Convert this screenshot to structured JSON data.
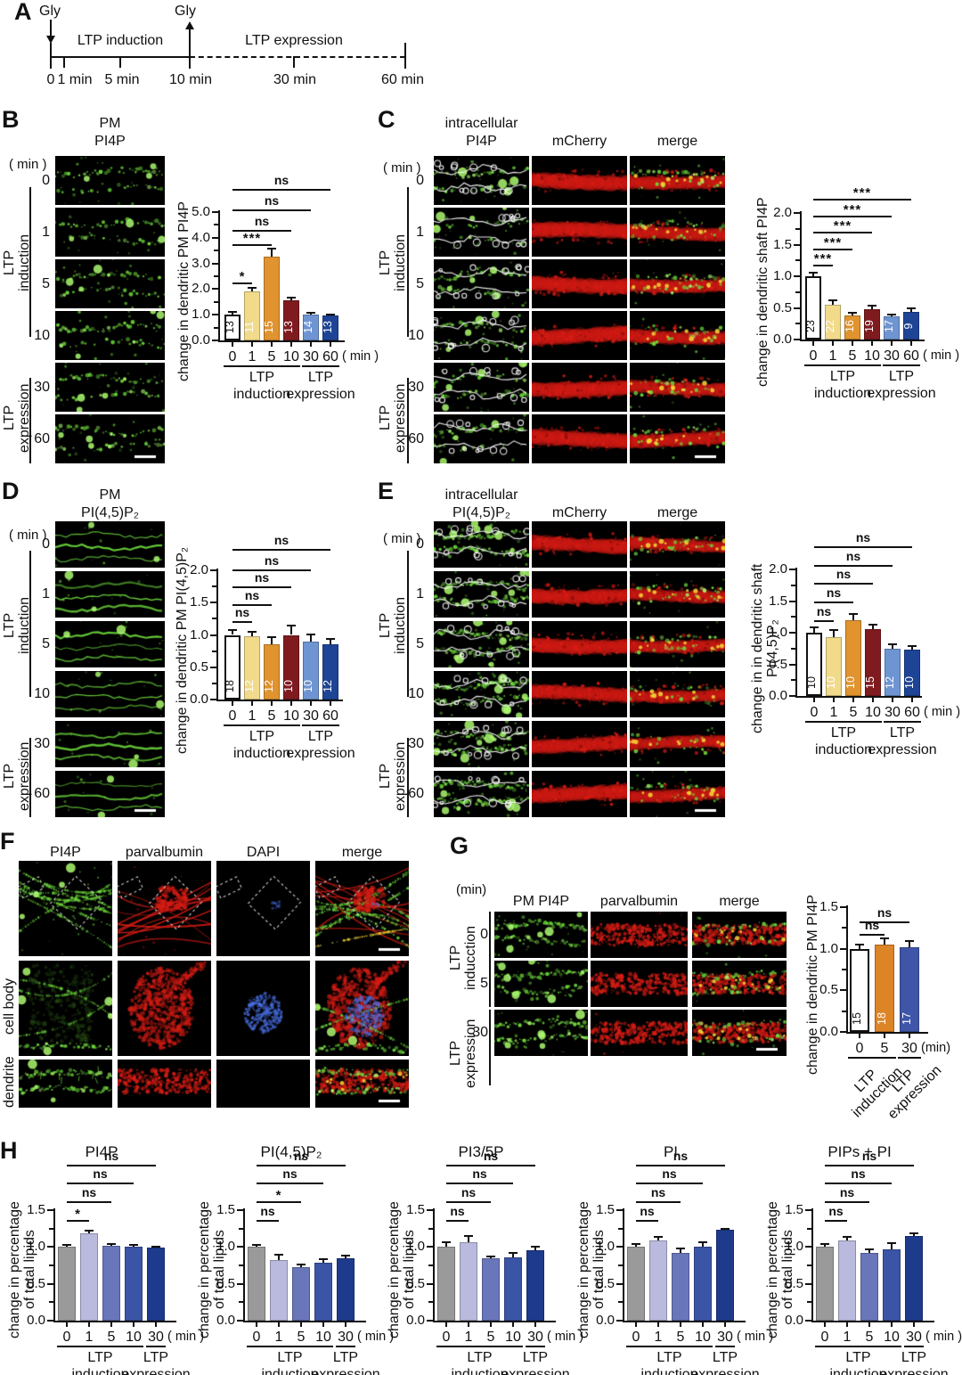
{
  "panels": {
    "A": {
      "label": "A",
      "gly": "Gly",
      "induction_label": "LTP induction",
      "expression_label": "LTP expression",
      "tick_labels": [
        "0",
        "1 min",
        "5 min",
        "10 min",
        "30 min",
        "60 min"
      ]
    },
    "B": {
      "label": "B",
      "header": [
        "PM",
        "PI4P"
      ],
      "min_label": "( min )",
      "times": [
        "0",
        "1",
        "5",
        "10",
        "30",
        "60"
      ],
      "side_groups": [
        [
          "LTP",
          "induction"
        ],
        [
          "LTP",
          "expression"
        ]
      ]
    },
    "C": {
      "label": "C",
      "header_col1": [
        "intracellular",
        "PI4P"
      ],
      "header_col2": "mCherry",
      "header_col3": "merge",
      "min_label": "( min )",
      "times": [
        "0",
        "1",
        "5",
        "10",
        "30",
        "60"
      ],
      "side_groups": [
        [
          "LTP",
          "induction"
        ],
        [
          "LTP",
          "expression"
        ]
      ]
    },
    "D": {
      "label": "D",
      "header": [
        "PM",
        "PI(4,5)P₂"
      ],
      "min_label": "( min )",
      "times": [
        "0",
        "1",
        "5",
        "10",
        "30",
        "60"
      ],
      "side_groups": [
        [
          "LTP",
          "induction"
        ],
        [
          "LTP",
          "expression"
        ]
      ]
    },
    "E": {
      "label": "E",
      "header_col1": [
        "intracellular",
        "PI(4,5)P₂"
      ],
      "header_col2": "mCherry",
      "header_col3": "merge",
      "min_label": "( min )",
      "times": [
        "0",
        "1",
        "5",
        "10",
        "30",
        "60"
      ],
      "side_groups": [
        [
          "LTP",
          "induction"
        ],
        [
          "LTP",
          "expression"
        ]
      ]
    },
    "F": {
      "label": "F",
      "col_headers": [
        "PI4P",
        "parvalbumin",
        "DAPI",
        "merge"
      ],
      "row_labels": [
        "cell body",
        "dendrite"
      ]
    },
    "G": {
      "label": "G",
      "min_label": "(min)",
      "col_headers": [
        "PM PI4P",
        "parvalbumin",
        "merge"
      ],
      "times": [
        "0",
        "5",
        "30"
      ],
      "side_groups": [
        [
          "LTP",
          "inducction"
        ],
        [
          "LTP",
          "expression"
        ]
      ]
    },
    "H": {
      "label": "H"
    }
  },
  "chart_data": [
    {
      "id": "B",
      "type": "bar",
      "title": "",
      "ylabel": "change in dendritic PM PI4P",
      "categories": [
        "0",
        "1",
        "5",
        "10",
        "30",
        "60"
      ],
      "values": [
        1.0,
        1.9,
        3.25,
        1.55,
        1.0,
        0.97
      ],
      "errors": [
        0.1,
        0.15,
        0.33,
        0.13,
        0.06,
        0.05
      ],
      "n": [
        13,
        11,
        15,
        13,
        14,
        13
      ],
      "bar_colors": [
        "#ffffff",
        "#f1da8a",
        "#e0932e",
        "#7f1b1f",
        "#6e95d2",
        "#1e4496"
      ],
      "ylim": [
        0,
        5
      ],
      "yticks": [
        0,
        1,
        2,
        3,
        4,
        5
      ],
      "ytick_labels": [
        "0.0",
        "1.0",
        "2.0",
        "3.0",
        "4.0",
        "5.0"
      ],
      "xunit": "( min )",
      "sig": [
        {
          "to": 1,
          "label": "*",
          "y": 2.26
        },
        {
          "to": 2,
          "label": "***",
          "y": 3.75
        },
        {
          "to": 3,
          "label": "ns",
          "y": 4.3
        },
        {
          "to": 4,
          "label": "ns",
          "y": 5.1
        },
        {
          "to": 5,
          "label": "ns",
          "y": 5.9
        }
      ],
      "groups": [
        {
          "lines": [
            "LTP",
            "induction"
          ],
          "from": 0,
          "to": 3
        },
        {
          "lines": [
            "LTP",
            "expression"
          ],
          "from": 4,
          "to": 5
        }
      ]
    },
    {
      "id": "C",
      "type": "bar",
      "title": "",
      "ylabel": "change in dendritic shaft PI4P",
      "categories": [
        "0",
        "1",
        "5",
        "10",
        "30",
        "60"
      ],
      "values": [
        1.0,
        0.55,
        0.38,
        0.48,
        0.36,
        0.44
      ],
      "errors": [
        0.06,
        0.07,
        0.04,
        0.06,
        0.04,
        0.05
      ],
      "n": [
        23,
        22,
        16,
        19,
        17,
        9
      ],
      "bar_colors": [
        "#ffffff",
        "#f1da8a",
        "#e0932e",
        "#7f1b1f",
        "#6e95d2",
        "#1e4496"
      ],
      "ylim": [
        0,
        2
      ],
      "yticks": [
        0,
        0.5,
        1,
        1.5,
        2
      ],
      "ytick_labels": [
        "0.0",
        "0.5",
        "1.0",
        "1.5",
        "2.0"
      ],
      "xunit": "( min )",
      "sig": [
        {
          "to": 1,
          "label": "***",
          "y": 1.18
        },
        {
          "to": 2,
          "label": "***",
          "y": 1.44
        },
        {
          "to": 3,
          "label": "***",
          "y": 1.7
        },
        {
          "to": 4,
          "label": "***",
          "y": 1.96
        },
        {
          "to": 5,
          "label": "***",
          "y": 2.22
        }
      ],
      "groups": [
        {
          "lines": [
            "LTP",
            "induction"
          ],
          "from": 0,
          "to": 3
        },
        {
          "lines": [
            "LTP",
            "expression"
          ],
          "from": 4,
          "to": 5
        }
      ]
    },
    {
      "id": "D",
      "type": "bar",
      "title": "",
      "ylabel": "change in dendritic PM PI(4,5)P₂",
      "categories": [
        "0",
        "1",
        "5",
        "10",
        "30",
        "60"
      ],
      "values": [
        1.0,
        0.98,
        0.85,
        1.0,
        0.9,
        0.85
      ],
      "errors": [
        0.08,
        0.07,
        0.12,
        0.14,
        0.11,
        0.09
      ],
      "n": [
        18,
        12,
        12,
        10,
        10,
        12
      ],
      "bar_colors": [
        "#ffffff",
        "#f1da8a",
        "#e0932e",
        "#7f1b1f",
        "#6e95d2",
        "#1e4496"
      ],
      "ylim": [
        0,
        2
      ],
      "yticks": [
        0,
        0.5,
        1,
        1.5,
        2
      ],
      "ytick_labels": [
        "0.0",
        "0.5",
        "1.0",
        "1.5",
        "2.0"
      ],
      "xunit": null,
      "sig": [
        {
          "to": 1,
          "label": "ns",
          "y": 1.21
        },
        {
          "to": 2,
          "label": "ns",
          "y": 1.47
        },
        {
          "to": 3,
          "label": "ns",
          "y": 1.75
        },
        {
          "to": 4,
          "label": "ns",
          "y": 2.02
        },
        {
          "to": 5,
          "label": "ns",
          "y": 2.33
        }
      ],
      "groups": [
        {
          "lines": [
            "LTP",
            "induction"
          ],
          "from": 0,
          "to": 3
        },
        {
          "lines": [
            "LTP",
            "expression"
          ],
          "from": 4,
          "to": 5
        }
      ]
    },
    {
      "id": "E",
      "type": "bar",
      "title": "",
      "ylabel": "change in in dendritic shaft PI(4,5)P₂",
      "categories": [
        "0",
        "1",
        "5",
        "10",
        "30",
        "60"
      ],
      "values": [
        1.0,
        0.93,
        1.2,
        1.05,
        0.75,
        0.73
      ],
      "errors": [
        0.09,
        0.11,
        0.1,
        0.07,
        0.07,
        0.06
      ],
      "n": [
        10,
        10,
        10,
        15,
        12,
        10
      ],
      "bar_colors": [
        "#ffffff",
        "#f1da8a",
        "#e0932e",
        "#7f1b1f",
        "#6e95d2",
        "#1e4496"
      ],
      "ylim": [
        0,
        2
      ],
      "yticks": [
        0,
        0.5,
        1,
        1.5,
        2
      ],
      "ytick_labels": [
        "0.0",
        "0.5",
        "1.0",
        "1.5",
        "2.0"
      ],
      "xunit": "( min )",
      "sig": [
        {
          "to": 1,
          "label": "ns",
          "y": 1.2
        },
        {
          "to": 2,
          "label": "ns",
          "y": 1.49
        },
        {
          "to": 3,
          "label": "ns",
          "y": 1.79
        },
        {
          "to": 4,
          "label": "ns",
          "y": 2.07
        },
        {
          "to": 5,
          "label": "ns",
          "y": 2.37
        }
      ],
      "groups": [
        {
          "lines": [
            "LTP",
            "induction"
          ],
          "from": 0,
          "to": 3
        },
        {
          "lines": [
            "LTP",
            "expression"
          ],
          "from": 4,
          "to": 5
        }
      ]
    },
    {
      "id": "G",
      "type": "bar",
      "title": "",
      "ylabel": "change in dendritic PM PI4P",
      "categories": [
        "0",
        "5",
        "30"
      ],
      "values": [
        1.0,
        1.05,
        1.02
      ],
      "errors": [
        0.05,
        0.07,
        0.07
      ],
      "n": [
        15,
        18,
        17
      ],
      "bar_colors": [
        "#ffffff",
        "#dd8427",
        "#3f55a8"
      ],
      "ylim": [
        0,
        1.5
      ],
      "yticks": [
        0,
        0.5,
        1,
        1.5
      ],
      "ytick_labels": [
        "0.0",
        "0.5",
        "1.0",
        "1.5"
      ],
      "xunit": "(min)",
      "sig": [
        {
          "to": 1,
          "label": "ns",
          "y": 1.18
        },
        {
          "to": 2,
          "label": "ns",
          "y": 1.33
        }
      ],
      "groups": [
        {
          "lines": [
            "LTP",
            "inducction"
          ],
          "from": 0,
          "to": 1,
          "rot": true
        },
        {
          "lines": [
            "LTP",
            "expression"
          ],
          "from": 2,
          "to": 2,
          "rot": true
        }
      ]
    },
    {
      "id": "H1",
      "type": "bar",
      "title": "PI4P",
      "ylabel": [
        "change in percentage",
        "of total lipids"
      ],
      "categories": [
        "0",
        "1",
        "5",
        "10",
        "30"
      ],
      "values": [
        1.0,
        1.18,
        1.02,
        1.0,
        0.99
      ],
      "errors": [
        0.03,
        0.04,
        0.02,
        0.03,
        0.01
      ],
      "n": null,
      "bar_colors": [
        "#9a9a9a",
        "#b9badd",
        "#6a76ba",
        "#3b55a6",
        "#1e3a8d"
      ],
      "ylim": [
        0,
        1.5
      ],
      "yticks": [
        0,
        0.5,
        1,
        1.5
      ],
      "ytick_labels": [
        "0.0",
        "0.5",
        "1.0",
        "1.5"
      ],
      "xunit": "( min )",
      "sig": [
        {
          "to": 1,
          "label": "*",
          "y": 1.37
        },
        {
          "to": 2,
          "label": "ns",
          "y": 1.62
        },
        {
          "to": 3,
          "label": "ns",
          "y": 1.87
        },
        {
          "to": 4,
          "label": "ns",
          "y": 2.12
        }
      ],
      "groups": [
        {
          "lines": [
            "LTP",
            "induction"
          ],
          "from": 0,
          "to": 3
        },
        {
          "lines": [
            "LTP",
            "expression"
          ],
          "from": 4,
          "to": 4
        }
      ]
    },
    {
      "id": "H2",
      "type": "bar",
      "title": "PI(4,5)P₂",
      "ylabel": [
        "change in percentage",
        "of total lipids"
      ],
      "categories": [
        "0",
        "1",
        "5",
        "10",
        "30"
      ],
      "values": [
        1.0,
        0.82,
        0.73,
        0.79,
        0.85
      ],
      "errors": [
        0.03,
        0.07,
        0.03,
        0.05,
        0.03
      ],
      "n": null,
      "bar_colors": [
        "#9a9a9a",
        "#b9badd",
        "#6a76ba",
        "#3b55a6",
        "#1e3a8d"
      ],
      "ylim": [
        0,
        1.5
      ],
      "yticks": [
        0,
        0.5,
        1,
        1.5
      ],
      "ytick_labels": [
        "0.0",
        "0.5",
        "1.0",
        "1.5"
      ],
      "xunit": "( min )",
      "sig": [
        {
          "to": 1,
          "label": "ns",
          "y": 1.37
        },
        {
          "to": 2,
          "label": "*",
          "y": 1.62
        },
        {
          "to": 3,
          "label": "ns",
          "y": 1.87
        },
        {
          "to": 4,
          "label": "ns",
          "y": 2.12
        }
      ],
      "groups": [
        {
          "lines": [
            "LTP",
            "induction"
          ],
          "from": 0,
          "to": 3
        },
        {
          "lines": [
            "LTP",
            "expression"
          ],
          "from": 4,
          "to": 4
        }
      ]
    },
    {
      "id": "H3",
      "type": "bar",
      "title": "PI3/5P",
      "ylabel": [
        "change in percentage",
        "of total lipids"
      ],
      "categories": [
        "0",
        "1",
        "5",
        "10",
        "30"
      ],
      "values": [
        1.0,
        1.06,
        0.85,
        0.86,
        0.95
      ],
      "errors": [
        0.07,
        0.09,
        0.02,
        0.06,
        0.06
      ],
      "n": null,
      "bar_colors": [
        "#9a9a9a",
        "#b9badd",
        "#6a76ba",
        "#3b55a6",
        "#1e3a8d"
      ],
      "ylim": [
        0,
        1.5
      ],
      "yticks": [
        0,
        0.5,
        1,
        1.5
      ],
      "ytick_labels": [
        "0.0",
        "0.5",
        "1.0",
        "1.5"
      ],
      "xunit": "( min )",
      "sig": [
        {
          "to": 1,
          "label": "ns",
          "y": 1.37
        },
        {
          "to": 2,
          "label": "ns",
          "y": 1.62
        },
        {
          "to": 3,
          "label": "ns",
          "y": 1.87
        },
        {
          "to": 4,
          "label": "ns",
          "y": 2.12
        }
      ],
      "groups": [
        {
          "lines": [
            "LTP",
            "induction"
          ],
          "from": 0,
          "to": 3
        },
        {
          "lines": [
            "LTP",
            "expression"
          ],
          "from": 4,
          "to": 4
        }
      ]
    },
    {
      "id": "H4",
      "type": "bar",
      "title": "PI",
      "ylabel": [
        "change in percentage",
        "of total lipids"
      ],
      "categories": [
        "0",
        "1",
        "5",
        "10",
        "30"
      ],
      "values": [
        1.0,
        1.09,
        0.92,
        1.0,
        1.23
      ],
      "errors": [
        0.04,
        0.05,
        0.06,
        0.07,
        0.02
      ],
      "n": null,
      "bar_colors": [
        "#9a9a9a",
        "#b9badd",
        "#6a76ba",
        "#3b55a6",
        "#1e3a8d"
      ],
      "ylim": [
        0,
        1.5
      ],
      "yticks": [
        0,
        0.5,
        1,
        1.5
      ],
      "ytick_labels": [
        "0.0",
        "0.5",
        "1.0",
        "1.5"
      ],
      "xunit": "( min )",
      "sig": [
        {
          "to": 1,
          "label": "ns",
          "y": 1.37
        },
        {
          "to": 2,
          "label": "ns",
          "y": 1.62
        },
        {
          "to": 3,
          "label": "ns",
          "y": 1.87
        },
        {
          "to": 4,
          "label": "ns",
          "y": 2.12
        }
      ],
      "groups": [
        {
          "lines": [
            "LTP",
            "induction"
          ],
          "from": 0,
          "to": 3
        },
        {
          "lines": [
            "LTP",
            "expression"
          ],
          "from": 4,
          "to": 4
        }
      ]
    },
    {
      "id": "H5",
      "type": "bar",
      "title": "PIPs + PI",
      "ylabel": [
        "change in percentage",
        "of total lipids"
      ],
      "categories": [
        "0",
        "1",
        "5",
        "10",
        "30"
      ],
      "values": [
        1.0,
        1.09,
        0.92,
        0.97,
        1.15
      ],
      "errors": [
        0.04,
        0.05,
        0.05,
        0.08,
        0.04
      ],
      "n": null,
      "bar_colors": [
        "#9a9a9a",
        "#b9badd",
        "#6a76ba",
        "#3b55a6",
        "#1e3a8d"
      ],
      "ylim": [
        0,
        1.5
      ],
      "yticks": [
        0,
        0.5,
        1,
        1.5
      ],
      "ytick_labels": [
        "0.0",
        "0.5",
        "1.0",
        "1.5"
      ],
      "xunit": "( min )",
      "sig": [
        {
          "to": 1,
          "label": "ns",
          "y": 1.37
        },
        {
          "to": 2,
          "label": "ns",
          "y": 1.62
        },
        {
          "to": 3,
          "label": "ns",
          "y": 1.87
        },
        {
          "to": 4,
          "label": "ns",
          "y": 2.12
        }
      ],
      "groups": [
        {
          "lines": [
            "LTP",
            "induction"
          ],
          "from": 0,
          "to": 3
        },
        {
          "lines": [
            "LTP",
            "expression"
          ],
          "from": 4,
          "to": 4
        }
      ]
    }
  ]
}
